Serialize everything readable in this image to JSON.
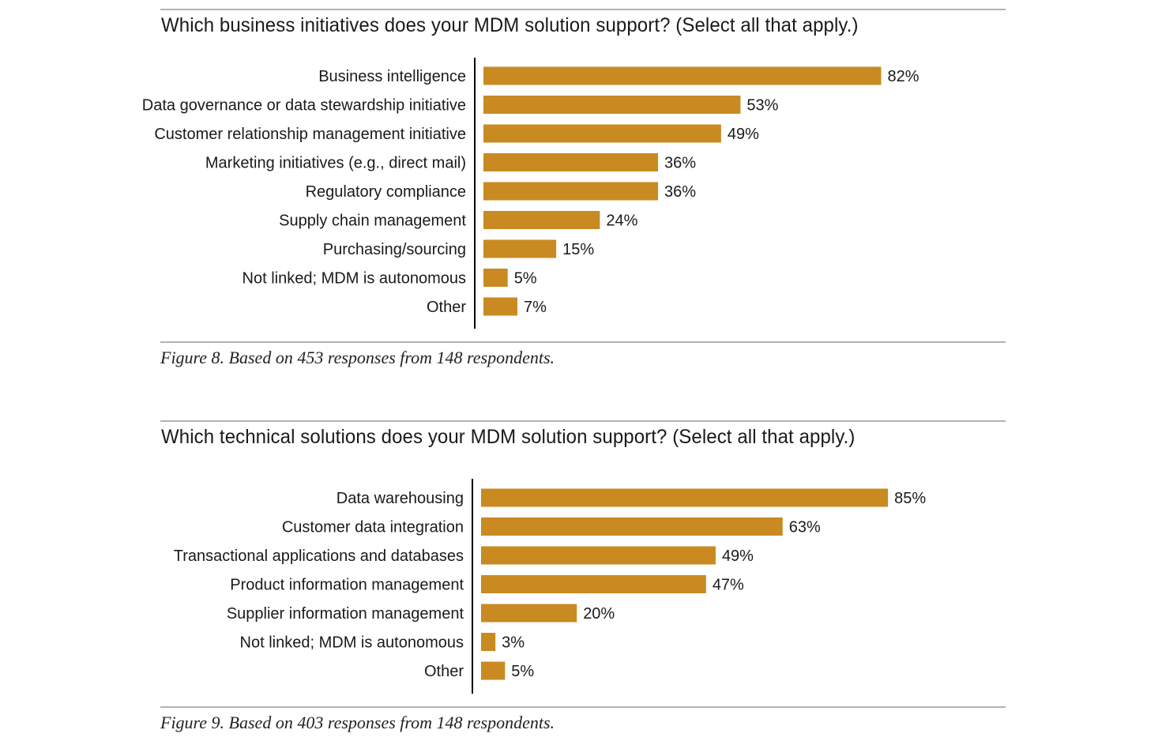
{
  "colors": {
    "bar": "#c98a21",
    "axis": "#000000",
    "rule": "#b3b3b3"
  },
  "figure8": {
    "question": "Which business initiatives does your MDM solution support? (Select all that apply.)",
    "caption": "Figure 8. Based on 453 responses from 148 respondents."
  },
  "figure9": {
    "question": "Which technical solutions does your MDM solution support? (Select all that apply.)",
    "caption": "Figure 9. Based on 403 responses from 148 respondents."
  },
  "chart_data": [
    {
      "type": "bar",
      "orientation": "horizontal",
      "title": "Which business initiatives does your MDM solution support? (Select all that apply.)",
      "categories": [
        "Business intelligence",
        "Data governance or data stewardship initiative",
        "Customer relationship management initiative",
        "Marketing initiatives (e.g., direct mail)",
        "Regulatory compliance",
        "Supply chain management",
        "Purchasing/sourcing",
        "Not linked; MDM is autonomous",
        "Other"
      ],
      "values": [
        82,
        53,
        49,
        36,
        36,
        24,
        15,
        5,
        7
      ],
      "value_labels": [
        "82%",
        "53%",
        "49%",
        "36%",
        "36%",
        "24%",
        "15%",
        "5%",
        "7%"
      ],
      "unit": "%",
      "grid": false
    },
    {
      "type": "bar",
      "orientation": "horizontal",
      "title": "Which technical solutions does your MDM solution support? (Select all that apply.)",
      "categories": [
        "Data warehousing",
        "Customer data integration",
        "Transactional applications and databases",
        "Product information management",
        "Supplier information management",
        "Not linked; MDM is autonomous",
        "Other"
      ],
      "values": [
        85,
        63,
        49,
        47,
        20,
        3,
        5
      ],
      "value_labels": [
        "85%",
        "63%",
        "49%",
        "47%",
        "20%",
        "3%",
        "5%"
      ],
      "unit": "%",
      "grid": false
    }
  ]
}
